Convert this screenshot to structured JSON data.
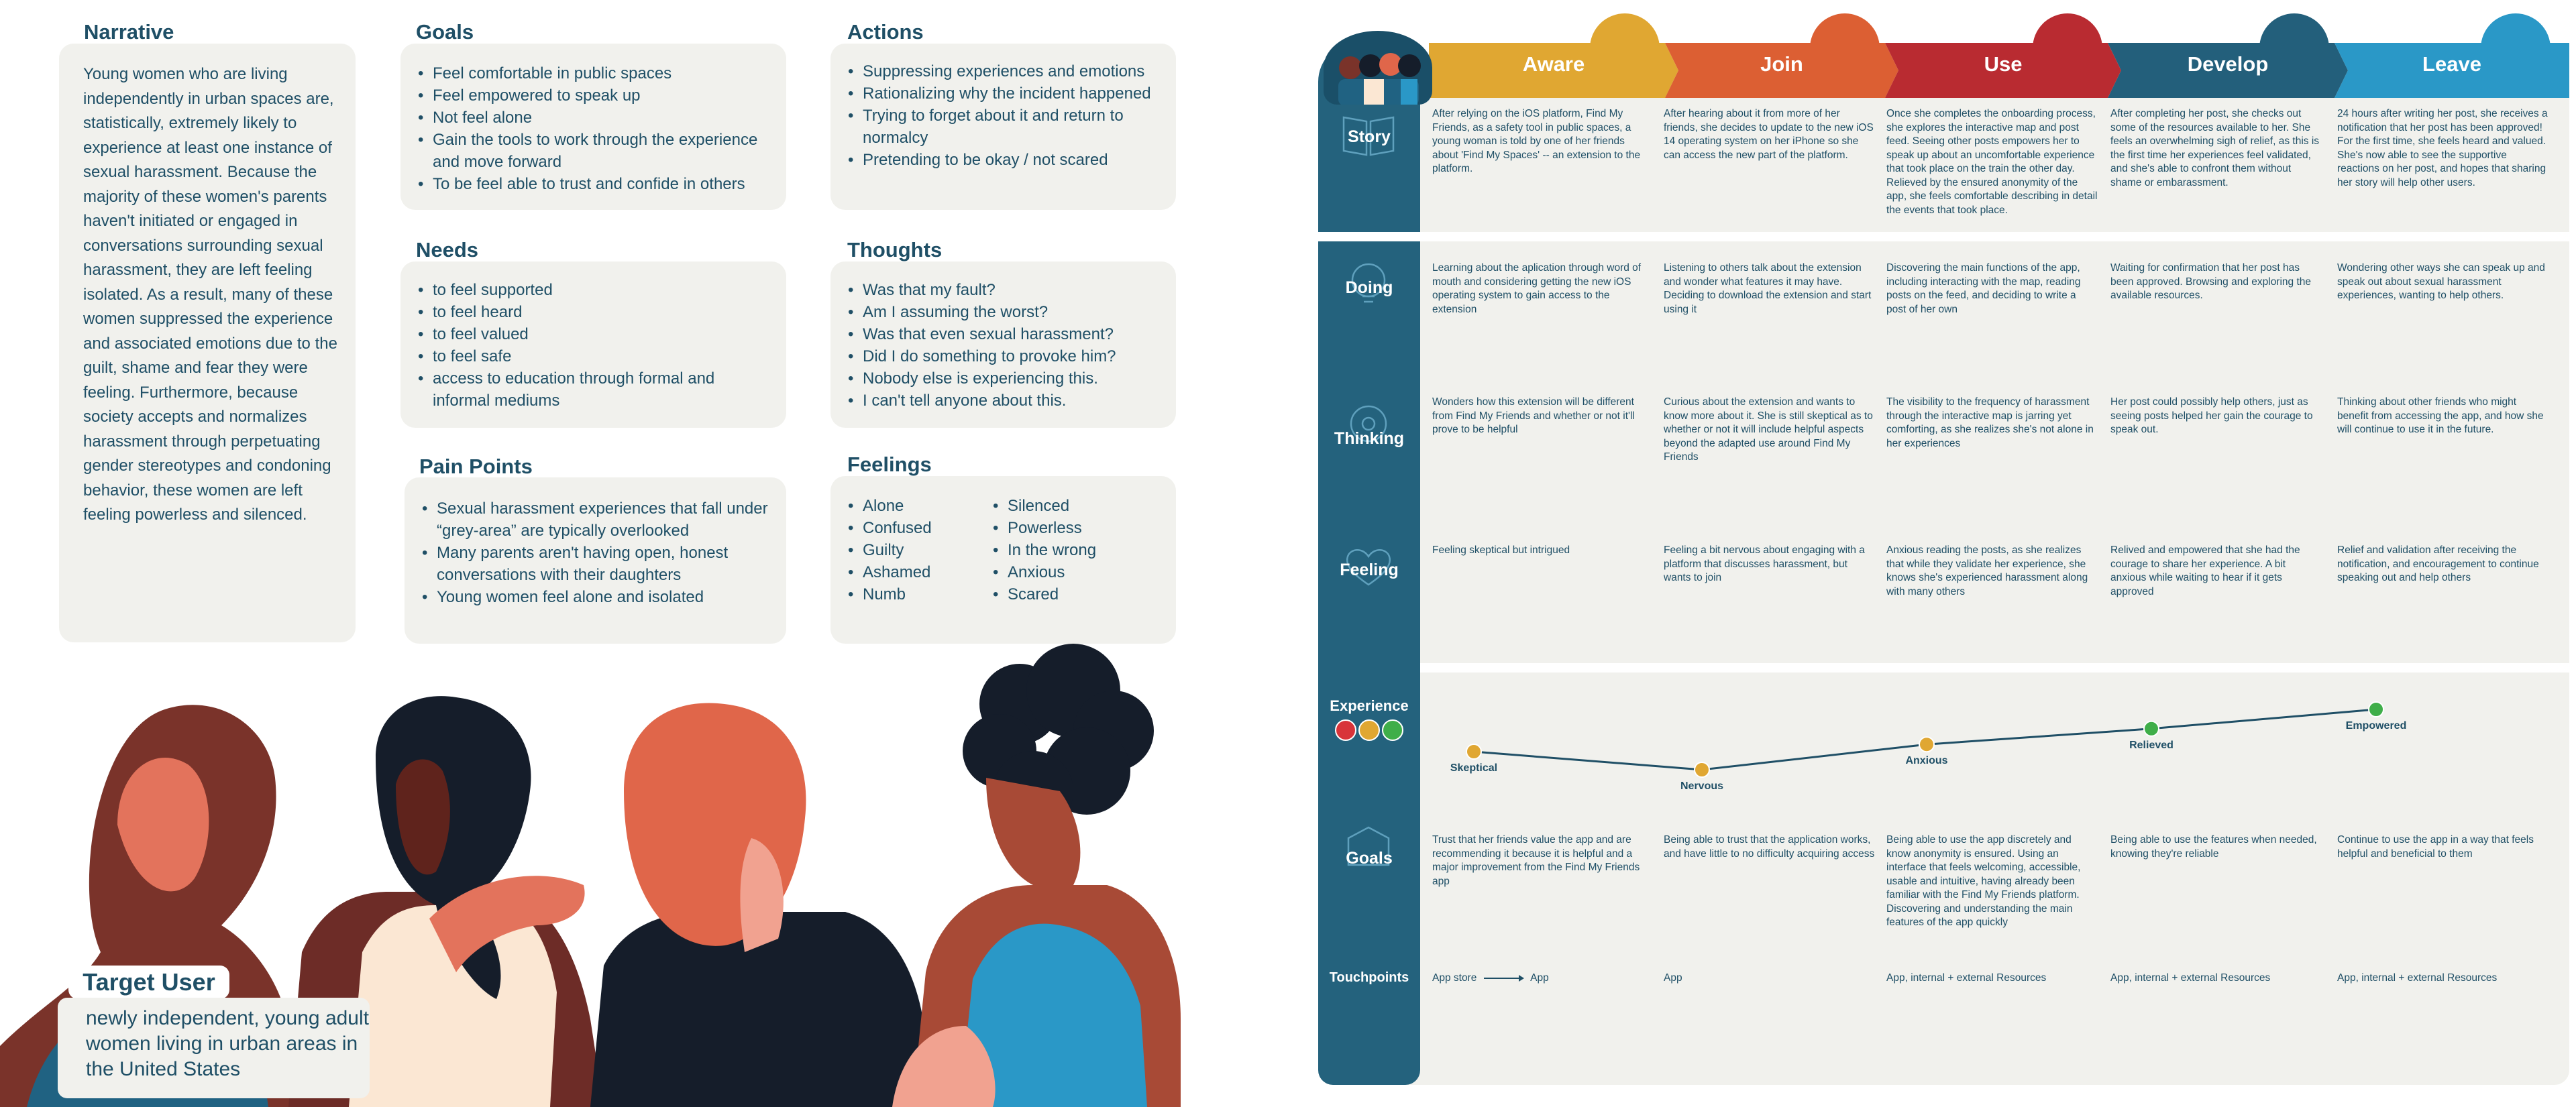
{
  "narrative": {
    "title": "Narrative",
    "body": "Young women who are living independently in urban spaces are, statistically, extremely likely to experience at least one instance of sexual harassment. Because the majority of these women's parents haven't initiated or engaged in conversations surrounding sexual harassment, they are left feeling isolated. As a result, many of these women suppressed the experience and associated emotions due to the guilt, shame and fear they were feeling. Furthermore, because society accepts and normalizes harassment through perpetuating gender stereotypes and condoning behavior, these women are left feeling powerless and silenced."
  },
  "goals": {
    "title": "Goals",
    "items": [
      "Feel comfortable in public spaces",
      "Feel empowered to speak up",
      "Not feel alone",
      "Gain the tools to work through the experience and move forward",
      "To be feel able to trust and confide in others"
    ]
  },
  "actions": {
    "title": "Actions",
    "items": [
      "Suppressing experiences and emotions",
      "Rationalizing why the incident happened",
      "Trying to forget about it and return to normalcy",
      "Pretending to be okay / not scared"
    ]
  },
  "needs": {
    "title": "Needs",
    "items": [
      "to feel supported",
      "to feel heard",
      "to feel valued",
      "to feel safe",
      "access to education through formal and informal mediums"
    ]
  },
  "thoughts": {
    "title": "Thoughts",
    "items": [
      "Was that my fault?",
      "Am I assuming the worst?",
      "Was that even sexual harassment?",
      "Did I do something to provoke him?",
      "Nobody else is experiencing this.",
      "I can't tell anyone about this."
    ]
  },
  "pain_points": {
    "title": "Pain Points",
    "items": [
      "Sexual harassment experiences that fall under “grey-area” are typically overlooked",
      "Many parents aren't having open, honest conversations with their daughters",
      "Young women feel alone and isolated"
    ]
  },
  "feelings": {
    "title": "Feelings",
    "col1": [
      "Alone",
      "Confused",
      "Guilty",
      "Ashamed",
      "Numb"
    ],
    "col2": [
      "Silenced",
      "Powerless",
      "In the wrong",
      "Anxious",
      "Scared"
    ]
  },
  "target_user": {
    "title": "Target User",
    "body": "newly independent, young adult women living in urban areas in the United States"
  },
  "journey": {
    "phases": [
      {
        "label": "Aware",
        "color": "#e0a732"
      },
      {
        "label": "Join",
        "color": "#dc5f33"
      },
      {
        "label": "Use",
        "color": "#b92b31"
      },
      {
        "label": "Develop",
        "color": "#235f7b"
      },
      {
        "label": "Leave",
        "color": "#2a98c7"
      }
    ],
    "rows": {
      "story": {
        "label": "Story",
        "cells": [
          "After relying on the iOS platform, Find My Friends, as a safety tool in public spaces, a young woman is told by one of her friends about 'Find My Spaces' -- an extension to the platform.",
          "After hearing about it from more of her friends, she decides to update to the new iOS 14 operating system on her iPhone so she can access the new part of the platform.",
          "Once she completes the onboarding process, she explores the interactive map and post feed. Seeing other posts empowers her to speak up about an uncomfortable experience that took place on the train the other day. Relieved by the ensured anonymity of the app, she feels comfortable describing in detail the events that took place.",
          "After completing her post, she checks out some of the resources available to her. She feels an overwhelming sigh of relief, as this is the first time her experiences feel validated, and she's able to confront them without shame or embarassment.",
          "24 hours after writing her post, she receives a notification that her post has been approved! For the first time, she feels heard and valued. She's now able to see the supportive reactions on her post, and hopes that sharing her story will help other users."
        ]
      },
      "doing": {
        "label": "Doing",
        "cells": [
          "Learning about the aplication through word of mouth and considering getting the new iOS operating system to gain access to the extension",
          "Listening to others talk about the extension and wonder what features it may have. Deciding to download the extension and start using it",
          "Discovering the main functions of the app, including interacting with the map, reading posts on the feed, and deciding to write a post of her own",
          "Waiting for confirmation that her post has been approved. Browsing and exploring the available resources.",
          "Wondering other ways she can speak up and speak out about sexual harassment experiences, wanting to help others."
        ]
      },
      "thinking": {
        "label": "Thinking",
        "cells": [
          "Wonders how this extension will be different from Find My Friends and whether or not it'll prove to be helpful",
          "Curious about the extension and wants to know more about it. She is still skeptical as to whether or not it will include helpful aspects beyond the adapted use around Find My Friends",
          "The visibility to the frequency of harassment through the interactive map is jarring yet comforting, as she realizes she's not alone in her experiences",
          "Her post could possibly help others, just as seeing posts helped her gain the courage to speak out.",
          "Thinking about other friends who might benefit from accessing the app, and how she will continue to use it in the future."
        ]
      },
      "feeling": {
        "label": "Feeling",
        "cells": [
          "Feeling skeptical but intrigued",
          "Feeling a bit nervous about engaging with a platform that discusses harassment, but wants to join",
          "Anxious reading the posts, as she realizes that while they validate her experience, she knows she's experienced harassment along with many others",
          "Relived and empowered that she had the courage to share her experience. A bit anxious while waiting to hear if it gets approved",
          "Relief and validation after receiving the notification, and encouragement to continue speaking out and help others"
        ]
      },
      "experience": {
        "label": "Experience",
        "points": [
          {
            "label": "Skeptical",
            "level": 0.3
          },
          {
            "label": "Nervous",
            "level": 0.0
          },
          {
            "label": "Anxious",
            "level": 0.42
          },
          {
            "label": "Relieved",
            "level": 0.68
          },
          {
            "label": "Empowered",
            "level": 1.0
          }
        ],
        "face_colors": [
          "#d8343a",
          "#e0a732",
          "#3fae49"
        ]
      },
      "goals": {
        "label": "Goals",
        "cells": [
          "Trust that her friends value the app and are recommending it because it is helpful and a major improvement from the Find My Friends app",
          "Being able to trust that the application works, and have little to no difficulty acquiring access",
          "Being able to use the app discretely and know anonymity is ensured. Using an interface that feels welcoming, accessible, usable and intuitive, having already been familiar with the Find My Friends platform. Discovering and understanding the main features of the app quickly",
          "Being able to use the features when needed, knowing they're reliable",
          "Continue to use the app in a way that feels helpful and beneficial to them"
        ]
      },
      "touchpoints": {
        "label": "Touchpoints",
        "first_from": "App store",
        "first_to": "App",
        "cells": [
          "",
          "App",
          "App, internal + external Resources",
          "App, internal + external Resources",
          "App, internal + external Resources"
        ]
      }
    }
  }
}
